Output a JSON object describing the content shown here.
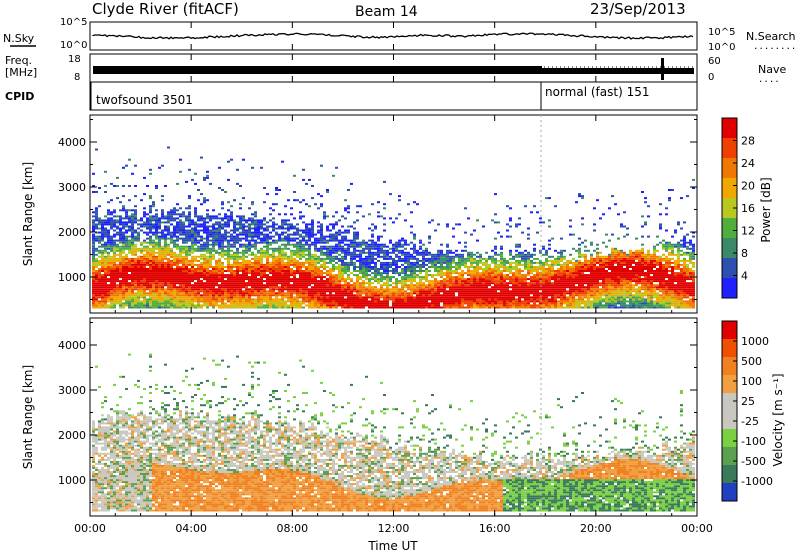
{
  "header": {
    "station": "Clyde River (fitACF)",
    "beam": "Beam 14",
    "date": "23/Sep/2013"
  },
  "status_panel": {
    "left_labels": {
      "nsky": "N.Sky",
      "freq_line1": "Freq.",
      "freq_line2": "[MHz]",
      "cpid": "CPID"
    },
    "right_labels": {
      "nsearch": "N.Search",
      "nave": "Nave",
      "nsearch_dots": "........",
      "nave_dots": "...."
    },
    "nsky_ticks": [
      "10^5",
      "10^0"
    ],
    "freq_ticks": [
      "18",
      "8"
    ],
    "nsearch_ticks": [
      "10^5",
      "10^0"
    ],
    "nave_ticks": [
      "60",
      "0"
    ],
    "cpid_segments": [
      "twofsound 3501",
      "normal (fast) 151"
    ]
  },
  "chart_data": [
    {
      "type": "heatmap",
      "title": "",
      "ylabel": "Slant Range [km]",
      "xlabel": "",
      "ylim": [
        200,
        4600
      ],
      "yticks": [
        "1000",
        "2000",
        "3000",
        "4000"
      ],
      "colorbar_label": "Power [dB]",
      "colorbar_ticks": [
        "4",
        "8",
        "12",
        "16",
        "20",
        "24",
        "28"
      ],
      "colors": [
        "#1f1fff",
        "#2c4fb0",
        "#3a8a6a",
        "#4fae3c",
        "#b8c820",
        "#f0a800",
        "#f07800",
        "#f04000",
        "#e00000"
      ]
    },
    {
      "type": "heatmap",
      "title": "",
      "ylabel": "Slant Range [km]",
      "xlabel": "Time UT",
      "ylim": [
        200,
        4600
      ],
      "yticks": [
        "1000",
        "2000",
        "3000",
        "4000"
      ],
      "xticks": [
        "00:00",
        "04:00",
        "08:00",
        "12:00",
        "16:00",
        "20:00",
        "00:00"
      ],
      "colorbar_label": "Velocity [m s⁻¹]",
      "colorbar_ticks": [
        "1000",
        "500",
        "100",
        "25",
        "-25",
        "-100",
        "-500",
        "-1000"
      ],
      "colors": [
        "#2040c0",
        "#3a7a5a",
        "#5aa050",
        "#7ad040",
        "#c8c8c0",
        "#c8c8c0",
        "#f0a040",
        "#f08020",
        "#f05000",
        "#e00000"
      ]
    }
  ],
  "time_axis": {
    "label": "Time UT",
    "ticks": [
      "00:00",
      "04:00",
      "08:00",
      "12:00",
      "16:00",
      "20:00",
      "00:00"
    ]
  }
}
